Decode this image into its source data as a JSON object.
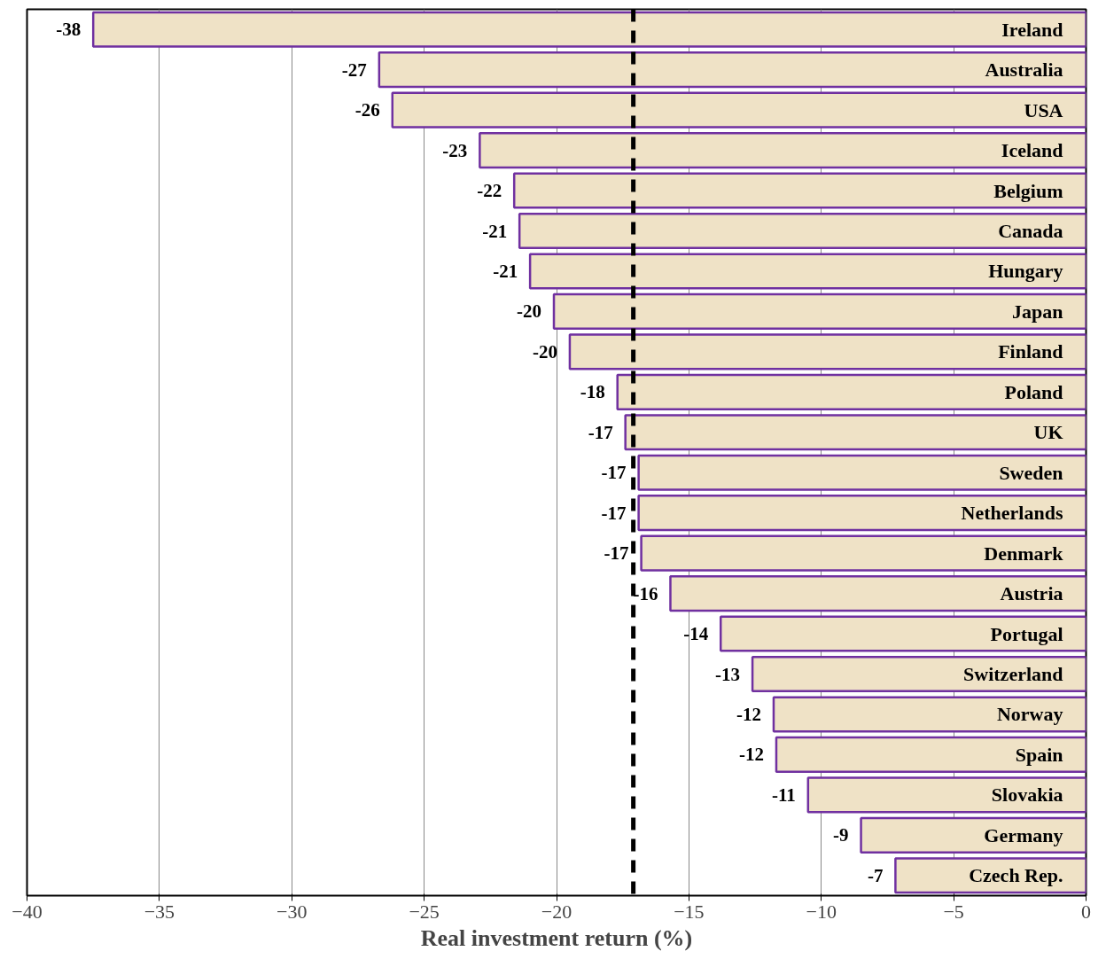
{
  "chart_data": {
    "type": "bar",
    "orientation": "horizontal",
    "xlabel": "Real investment return (%)",
    "categories": [
      "Ireland",
      "Australia",
      "USA",
      "Iceland",
      "Belgium",
      "Canada",
      "Hungary",
      "Japan",
      "Finland",
      "Poland",
      "UK",
      "Sweden",
      "Netherlands",
      "Denmark",
      "Austria",
      "Portugal",
      "Switzerland",
      "Norway",
      "Spain",
      "Slovakia",
      "Germany",
      "Czech Rep."
    ],
    "values": [
      -37.5,
      -26.7,
      -26.2,
      -22.9,
      -21.6,
      -21.4,
      -21.0,
      -20.1,
      -19.5,
      -17.7,
      -17.4,
      -16.9,
      -16.9,
      -16.8,
      -15.7,
      -13.8,
      -12.6,
      -11.8,
      -11.7,
      -10.5,
      -8.5,
      -7.2
    ],
    "value_labels": [
      "-38",
      "-27",
      "-26",
      "-23",
      "-22",
      "-21",
      "-21",
      "-20",
      "-20",
      "-18",
      "-17",
      "-17",
      "-17",
      "-17",
      "-16",
      "-14",
      "-13",
      "-12",
      "-12",
      "-11",
      "-9",
      "-7"
    ],
    "color": "#efe2c6",
    "xlim": [
      -40,
      0
    ],
    "xticks": [
      -40,
      -35,
      -30,
      -25,
      -20,
      -15,
      -10,
      -5,
      0
    ],
    "grid": "x",
    "ref_lines": [
      {
        "axis": "x",
        "value": -17.1,
        "color": "#000000",
        "line_style": "dashed"
      }
    ]
  }
}
